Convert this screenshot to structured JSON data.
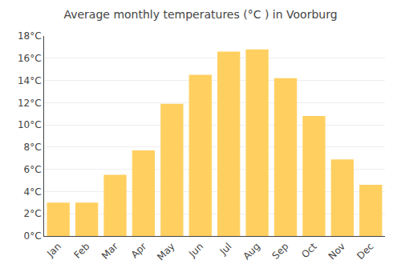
{
  "chart_data": {
    "type": "bar",
    "title": "Average monthly temperatures (°C ) in Voorburg",
    "categories": [
      "Jan",
      "Feb",
      "Mar",
      "Apr",
      "May",
      "Jun",
      "Jul",
      "Aug",
      "Sep",
      "Oct",
      "Nov",
      "Dec"
    ],
    "values": [
      3.0,
      3.0,
      5.5,
      7.7,
      11.9,
      14.5,
      16.6,
      16.8,
      14.2,
      10.8,
      6.9,
      4.6
    ],
    "color": "#FFD060",
    "ylim": [
      0,
      18
    ],
    "yticks": [
      {
        "value": 0,
        "label": "0°C"
      },
      {
        "value": 2,
        "label": "2°C"
      },
      {
        "value": 4,
        "label": "4°C"
      },
      {
        "value": 6,
        "label": "6°C"
      },
      {
        "value": 8,
        "label": "8°C"
      },
      {
        "value": 10,
        "label": "10°C"
      },
      {
        "value": 12,
        "label": "12°C"
      },
      {
        "value": 14,
        "label": "14°C"
      },
      {
        "value": 16,
        "label": "16°C"
      },
      {
        "value": 18,
        "label": "18°C"
      }
    ],
    "grid": true
  }
}
